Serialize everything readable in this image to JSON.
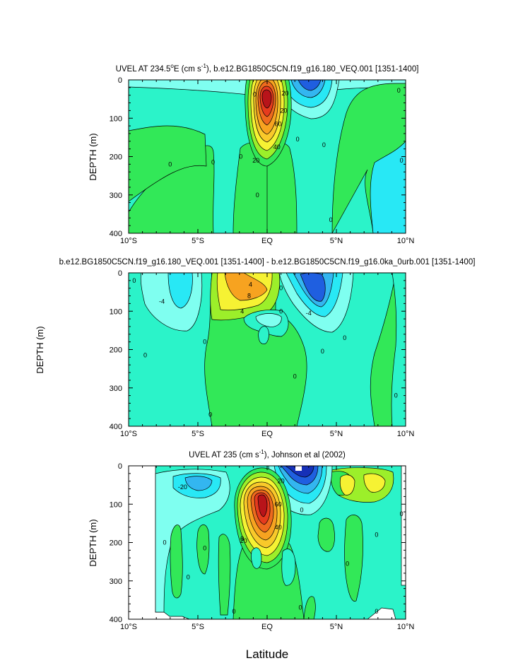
{
  "figure": {
    "xlabel": "Latitude",
    "panel_ylabel": "DEPTH (m)",
    "side_ylabel": "DEPTH (m)"
  },
  "palette": {
    "cyan_light": "#7ffff0",
    "cyan": "#28e8f5",
    "aqua": "#2bf3c9",
    "green": "#32e858",
    "lime": "#9cef2a",
    "yellow": "#f6f233",
    "orange": "#f7a320",
    "red": "#e63b1e",
    "darkred": "#b8141a",
    "blue": "#1f5fe0",
    "deepblue": "#1630b8"
  },
  "chart_data": [
    {
      "type": "contour",
      "title_main": "UVEL AT 234.5",
      "title_deg": "o",
      "title_unit_pre": "E (cm s",
      "title_exp": "-1",
      "title_rest": "), b.e12.BG1850C5CN.f19_g16.180_VEQ.001 [1351-1400]",
      "ylabel": "DEPTH (m)",
      "x_ticks": [
        "10°S",
        "5°S",
        "EQ",
        "5°N",
        "10°N"
      ],
      "x_tick_values": [
        -10,
        -5,
        0,
        5,
        10
      ],
      "y_ticks": [
        "0",
        "100",
        "200",
        "300",
        "400"
      ],
      "y_tick_values": [
        0,
        100,
        200,
        300,
        400
      ],
      "xlim": [
        -10,
        10
      ],
      "ylim": [
        400,
        0
      ],
      "contour_labels": [
        {
          "text": "20",
          "x": 1.3,
          "y": 35
        },
        {
          "text": "20",
          "x": 1.2,
          "y": 80
        },
        {
          "text": "60",
          "x": 0.8,
          "y": 115
        },
        {
          "text": "40",
          "x": 0.7,
          "y": 175
        },
        {
          "text": "20",
          "x": -0.8,
          "y": 210
        },
        {
          "text": "0",
          "x": -0.9,
          "y": 38
        },
        {
          "text": "0",
          "x": 2.2,
          "y": 155
        },
        {
          "text": "0",
          "x": -7.0,
          "y": 220
        },
        {
          "text": "0",
          "x": -3.9,
          "y": 215
        },
        {
          "text": "0",
          "x": -1.9,
          "y": 200
        },
        {
          "text": "0",
          "x": -0.7,
          "y": 300
        },
        {
          "text": "0",
          "x": 4.1,
          "y": 170
        },
        {
          "text": "0",
          "x": 4.6,
          "y": 365
        },
        {
          "text": "0",
          "x": 9.5,
          "y": 28
        },
        {
          "text": "0",
          "x": 9.7,
          "y": 210
        }
      ]
    },
    {
      "type": "contour",
      "title": "b.e12.BG1850C5CN.f19_g16.180_VEQ.001 [1351-1400] - b.e12.BG1850C5CN.f19_g16.0ka_0urb.001 [1351-1400]",
      "ylabel": "",
      "x_ticks": [
        "10°S",
        "5°S",
        "EQ",
        "5°N",
        "10°N"
      ],
      "x_tick_values": [
        -10,
        -5,
        0,
        5,
        10
      ],
      "y_ticks": [
        "0",
        "100",
        "200",
        "300",
        "400"
      ],
      "y_tick_values": [
        0,
        100,
        200,
        300,
        400
      ],
      "xlim": [
        -10,
        10
      ],
      "ylim": [
        400,
        0
      ],
      "contour_labels": [
        {
          "text": "4",
          "x": -1.2,
          "y": 30
        },
        {
          "text": "8",
          "x": -1.3,
          "y": 60
        },
        {
          "text": "4",
          "x": -1.8,
          "y": 100
        },
        {
          "text": "-4",
          "x": -7.6,
          "y": 75
        },
        {
          "text": "0",
          "x": -9.6,
          "y": 20
        },
        {
          "text": "0",
          "x": 1.0,
          "y": 40
        },
        {
          "text": "0",
          "x": 1.0,
          "y": 100
        },
        {
          "text": "-4",
          "x": 3.0,
          "y": 105
        },
        {
          "text": "0",
          "x": -4.5,
          "y": 180
        },
        {
          "text": "0",
          "x": -8.8,
          "y": 215
        },
        {
          "text": "0",
          "x": 2.0,
          "y": 270
        },
        {
          "text": "0",
          "x": 4.0,
          "y": 205
        },
        {
          "text": "0",
          "x": 5.6,
          "y": 170
        },
        {
          "text": "0",
          "x": -4.1,
          "y": 370
        },
        {
          "text": "0",
          "x": 9.3,
          "y": 320
        }
      ]
    },
    {
      "type": "contour",
      "title_main": "UVEL AT 235 (cm s",
      "title_exp": "-1",
      "title_rest": "), Johnson et al (2002)",
      "ylabel": "DEPTH (m)",
      "x_ticks": [
        "10°S",
        "5°S",
        "EQ",
        "5°N",
        "10°N"
      ],
      "x_tick_values": [
        -10,
        -5,
        0,
        5,
        10
      ],
      "y_ticks": [
        "0",
        "100",
        "200",
        "300",
        "400"
      ],
      "y_tick_values": [
        0,
        100,
        200,
        300,
        400
      ],
      "xlim": [
        -10,
        10
      ],
      "ylim": [
        400,
        0
      ],
      "contour_labels": [
        {
          "text": "-20",
          "x": -6.1,
          "y": 55
        },
        {
          "text": "20",
          "x": 1.0,
          "y": 40
        },
        {
          "text": "60",
          "x": 0.8,
          "y": 100
        },
        {
          "text": "40",
          "x": 0.8,
          "y": 160
        },
        {
          "text": "20",
          "x": -1.7,
          "y": 195
        },
        {
          "text": "0",
          "x": -7.4,
          "y": 200
        },
        {
          "text": "0",
          "x": -5.7,
          "y": 290
        },
        {
          "text": "0",
          "x": -4.5,
          "y": 215
        },
        {
          "text": "0",
          "x": -1.8,
          "y": 190
        },
        {
          "text": "0",
          "x": -2.4,
          "y": 380
        },
        {
          "text": "0",
          "x": 2.5,
          "y": 115
        },
        {
          "text": "0",
          "x": 2.4,
          "y": 370
        },
        {
          "text": "0",
          "x": 5.8,
          "y": 255
        },
        {
          "text": "0",
          "x": 7.9,
          "y": 180
        },
        {
          "text": "0",
          "x": 7.9,
          "y": 380
        },
        {
          "text": "0",
          "x": 9.7,
          "y": 125
        }
      ]
    }
  ]
}
